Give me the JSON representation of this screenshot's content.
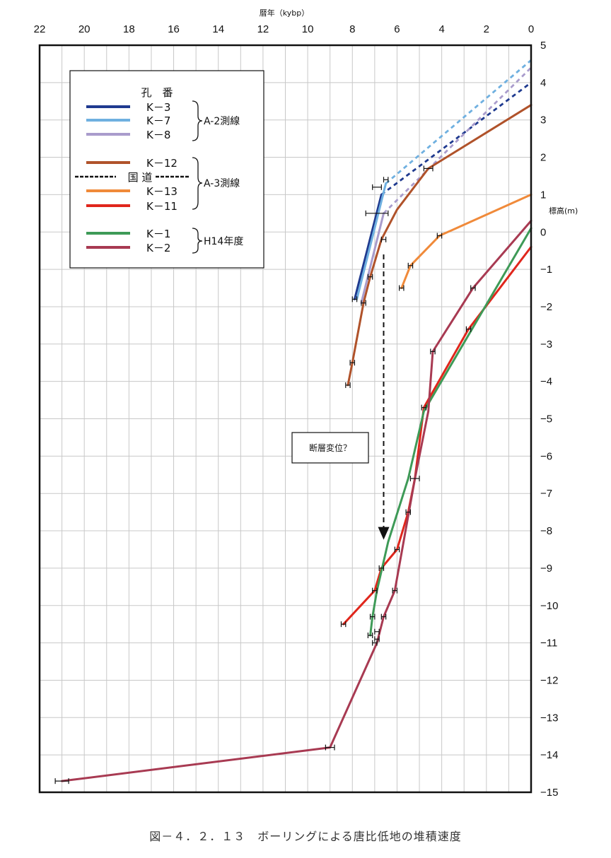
{
  "caption": "図－４．２．１３　ボーリングによる唐比低地の堆積速度",
  "chart_data": {
    "type": "line",
    "xlabel": "暦年（kybp）",
    "ylabel": "標高(m)",
    "xlim": [
      22,
      0
    ],
    "ylim": [
      -15,
      5
    ],
    "x_ticks": [
      22,
      20,
      18,
      16,
      14,
      12,
      10,
      8,
      6,
      4,
      2,
      0
    ],
    "y_ticks": [
      5,
      4,
      3,
      2,
      1,
      0,
      -1,
      -2,
      -3,
      -4,
      -5,
      -6,
      -7,
      -8,
      -9,
      -10,
      -11,
      -12,
      -13,
      -14,
      -15
    ],
    "grid": true,
    "legend": {
      "header": "孔　番",
      "groups": [
        {
          "label": "A-2測線",
          "entries": [
            "K－3",
            "K－7",
            "K－8"
          ]
        },
        {
          "label": "A-3測線",
          "entries": [
            "K－12",
            "K－13",
            "K－11"
          ],
          "divider": "国 道"
        },
        {
          "label": "H14年度",
          "entries": [
            "K－1",
            "K－2"
          ]
        }
      ]
    },
    "series": [
      {
        "name": "K－3",
        "color": "#1f3a8f",
        "x": [
          7.9,
          6.7
        ],
        "y": [
          -1.8,
          1.0
        ],
        "dashed_x": [
          6.7,
          0
        ],
        "dashed_y": [
          1.0,
          4.0
        ]
      },
      {
        "name": "K－7",
        "color": "#6fb0e0",
        "x": [
          7.8,
          6.5
        ],
        "y": [
          -1.8,
          1.3
        ],
        "dashed_x": [
          6.5,
          0
        ],
        "dashed_y": [
          1.3,
          4.6
        ]
      },
      {
        "name": "K－8",
        "color": "#a99ccc",
        "x": [
          7.6,
          6.6
        ],
        "y": [
          -1.9,
          0.5
        ],
        "dashed_x": [
          6.6,
          0
        ],
        "dashed_y": [
          0.5,
          4.4
        ]
      },
      {
        "name": "K－12",
        "color": "#b0522a",
        "x": [
          8.2,
          8.0,
          7.5,
          7.2,
          6.7,
          6.0,
          4.6,
          0
        ],
        "y": [
          -4.1,
          -3.5,
          -1.9,
          -1.2,
          -0.2,
          0.6,
          1.7,
          3.4
        ]
      },
      {
        "name": "K－13",
        "color": "#f08a3a",
        "x": [
          5.8,
          5.4,
          4.1,
          0
        ],
        "y": [
          -1.5,
          -0.9,
          -0.1,
          1.0
        ]
      },
      {
        "name": "K－11",
        "color": "#e0261c",
        "x": [
          8.4,
          7.0,
          6.7,
          6.0,
          5.5,
          5.2,
          4.8,
          2.8,
          0
        ],
        "y": [
          -10.5,
          -9.6,
          -9.0,
          -8.5,
          -7.5,
          -6.6,
          -4.7,
          -2.6,
          -0.4
        ]
      },
      {
        "name": "K－1",
        "color": "#3e9a57",
        "x": [
          7.2,
          7.1,
          6.9,
          6.4,
          5.5,
          4.8,
          0
        ],
        "y": [
          -10.8,
          -10.3,
          -9.6,
          -8.3,
          -6.6,
          -4.8,
          0.1
        ]
      },
      {
        "name": "K－2",
        "color": "#a83a52",
        "x": [
          21.0,
          9.0,
          6.9,
          6.6,
          6.1,
          5.2,
          4.6,
          4.4,
          2.6,
          0
        ],
        "y": [
          -14.7,
          -13.8,
          -11.0,
          -10.3,
          -9.6,
          -6.6,
          -4.8,
          -3.2,
          -1.5,
          0.3
        ]
      }
    ],
    "error_bars": [
      {
        "x": 21.0,
        "y": -14.7,
        "half": 0.3
      },
      {
        "x": 9.0,
        "y": -13.8,
        "half": 0.2
      },
      {
        "x": 8.2,
        "y": -4.1,
        "half": 0.1
      },
      {
        "x": 8.0,
        "y": -3.5,
        "half": 0.1
      },
      {
        "x": 7.9,
        "y": -1.8,
        "half": 0.1
      },
      {
        "x": 7.5,
        "y": -1.9,
        "half": 0.1
      },
      {
        "x": 7.2,
        "y": -1.2,
        "half": 0.1
      },
      {
        "x": 6.9,
        "y": 1.2,
        "half": 0.2
      },
      {
        "x": 6.5,
        "y": 1.4,
        "half": 0.1
      },
      {
        "x": 6.9,
        "y": 0.5,
        "half": 0.5
      },
      {
        "x": 6.6,
        "y": -0.2,
        "half": 0.1
      },
      {
        "x": 4.6,
        "y": 1.7,
        "half": 0.2
      },
      {
        "x": 5.8,
        "y": -1.5,
        "half": 0.1
      },
      {
        "x": 5.4,
        "y": -0.9,
        "half": 0.1
      },
      {
        "x": 4.1,
        "y": -0.1,
        "half": 0.1
      },
      {
        "x": 2.6,
        "y": -1.5,
        "half": 0.1
      },
      {
        "x": 4.4,
        "y": -3.2,
        "half": 0.1
      },
      {
        "x": 2.8,
        "y": -2.6,
        "half": 0.1
      },
      {
        "x": 4.8,
        "y": -4.7,
        "half": 0.1
      },
      {
        "x": 5.2,
        "y": -6.6,
        "half": 0.2
      },
      {
        "x": 5.5,
        "y": -7.5,
        "half": 0.1
      },
      {
        "x": 6.0,
        "y": -8.5,
        "half": 0.1
      },
      {
        "x": 6.7,
        "y": -9.0,
        "half": 0.1
      },
      {
        "x": 7.0,
        "y": -9.6,
        "half": 0.1
      },
      {
        "x": 6.1,
        "y": -9.6,
        "half": 0.1
      },
      {
        "x": 7.1,
        "y": -10.3,
        "half": 0.1
      },
      {
        "x": 6.6,
        "y": -10.3,
        "half": 0.1
      },
      {
        "x": 8.4,
        "y": -10.5,
        "half": 0.1
      },
      {
        "x": 6.9,
        "y": -10.7,
        "half": 0.1
      },
      {
        "x": 7.2,
        "y": -10.8,
        "half": 0.1
      },
      {
        "x": 6.9,
        "y": -10.9,
        "half": 0.1
      },
      {
        "x": 7.0,
        "y": -11.0,
        "half": 0.1
      }
    ],
    "annotations": [
      {
        "text": "断層変位？",
        "arrow_x": 6.6,
        "arrow_from_y": -0.6,
        "arrow_to_y": -8.2
      }
    ]
  }
}
